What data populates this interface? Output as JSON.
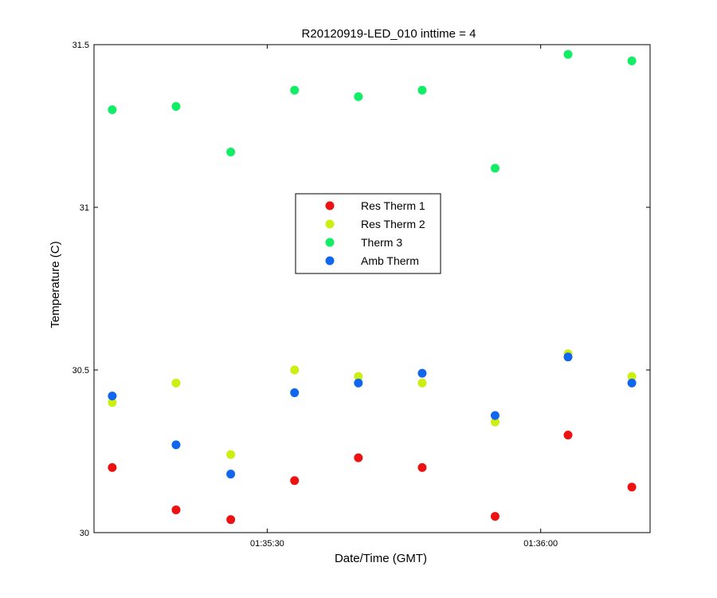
{
  "chart_data": {
    "type": "scatter",
    "title": "R20120919-LED_010 inttime = 4",
    "xlabel": "Date/Time (GMT)",
    "ylabel": "Temperature (C)",
    "ylim": [
      30,
      31.5
    ],
    "xlim": [
      "01:35:11",
      "01:36:12"
    ],
    "x_ticks": [
      {
        "value": "01:35:30",
        "label": "01:35:30"
      },
      {
        "value": "01:36:00",
        "label": "01:36:00"
      }
    ],
    "y_ticks": [
      {
        "value": 30,
        "label": "30"
      },
      {
        "value": 30.5,
        "label": "30.5"
      },
      {
        "value": 31,
        "label": "31"
      },
      {
        "value": 31.5,
        "label": "31.5"
      }
    ],
    "grid": false,
    "legend_position": "center",
    "x": [
      "01:35:13",
      "01:35:20",
      "01:35:26",
      "01:35:33",
      "01:35:40",
      "01:35:47",
      "01:35:55",
      "01:36:03",
      "01:36:10"
    ],
    "series": [
      {
        "name": "Res Therm 1",
        "color": "#ee1111",
        "values": [
          30.2,
          30.07,
          30.04,
          30.16,
          30.23,
          30.2,
          30.05,
          30.3,
          30.14
        ]
      },
      {
        "name": "Res Therm 2",
        "color": "#ccee11",
        "values": [
          30.4,
          30.46,
          30.24,
          30.5,
          30.48,
          30.46,
          30.34,
          30.55,
          30.48
        ]
      },
      {
        "name": "Therm 3",
        "color": "#11ee66",
        "values": [
          31.3,
          31.31,
          31.17,
          31.36,
          31.34,
          31.36,
          31.12,
          31.47,
          31.45
        ]
      },
      {
        "name": "Amb Therm",
        "color": "#1166ee",
        "values": [
          30.42,
          30.27,
          30.18,
          30.43,
          30.46,
          30.49,
          30.36,
          30.54,
          30.46
        ]
      }
    ]
  }
}
